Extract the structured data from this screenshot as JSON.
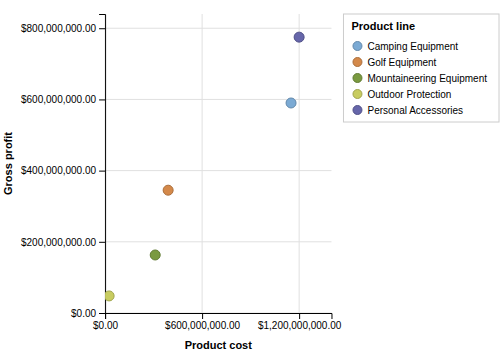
{
  "chart_data": {
    "type": "scatter",
    "x_label": "Product cost",
    "y_label": "Gross profit",
    "legend_title": "Product line",
    "series": [
      {
        "name": "Camping Equipment",
        "color": "#7BAAD4",
        "x": [
          1150000000
        ],
        "values": [
          590000000
        ]
      },
      {
        "name": "Golf Equipment",
        "color": "#D4894A",
        "x": [
          390000000
        ],
        "values": [
          345000000
        ]
      },
      {
        "name": "Mountaineering Equipment",
        "color": "#7A9A40",
        "x": [
          310000000
        ],
        "values": [
          163000000
        ]
      },
      {
        "name": "Outdoor Protection",
        "color": "#C8CC60",
        "x": [
          25000000
        ],
        "values": [
          48000000
        ]
      },
      {
        "name": "Personal Accessories",
        "color": "#6666AA",
        "x": [
          1200000000
        ],
        "values": [
          775000000
        ]
      }
    ],
    "xlim": [
      0,
      1400000000
    ],
    "ylim": [
      0,
      840000000
    ],
    "xticks": [
      {
        "value": 0,
        "label": "$0.00"
      },
      {
        "value": 600000000,
        "label": "$600,000,000.00"
      },
      {
        "value": 1200000000,
        "label": "$1,200,000,000.00"
      }
    ],
    "yticks": [
      {
        "value": 0,
        "label": "$0.00"
      },
      {
        "value": 200000000,
        "label": "$200,000,000.00"
      },
      {
        "value": 400000000,
        "label": "$400,000,000.00"
      },
      {
        "value": 600000000,
        "label": "$600,000,000.00"
      },
      {
        "value": 800000000,
        "label": "$800,000,000.00"
      }
    ],
    "grid": true,
    "legend": "right"
  }
}
